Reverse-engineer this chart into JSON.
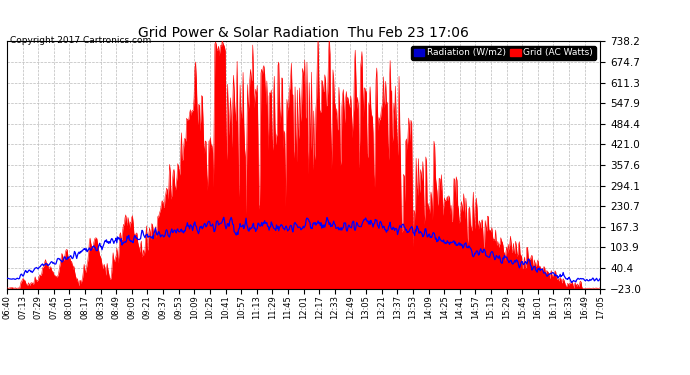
{
  "title": "Grid Power & Solar Radiation  Thu Feb 23 17:06",
  "copyright": "Copyright 2017 Cartronics.com",
  "yticks": [
    -23.0,
    40.4,
    103.9,
    167.3,
    230.7,
    294.1,
    357.6,
    421.0,
    484.4,
    547.9,
    611.3,
    674.7,
    738.2
  ],
  "ymin": -23.0,
  "ymax": 738.2,
  "bg_color": "#ffffff",
  "plot_bg_color": "#ffffff",
  "grid_color": "#bbbbbb",
  "fill_color": "#ff0000",
  "line_color": "#0000ff",
  "xtick_labels": [
    "06:40",
    "07:13",
    "07:29",
    "07:45",
    "08:01",
    "08:17",
    "08:33",
    "08:49",
    "09:05",
    "09:21",
    "09:37",
    "09:53",
    "10:09",
    "10:25",
    "10:41",
    "10:57",
    "11:13",
    "11:29",
    "11:45",
    "12:01",
    "12:17",
    "12:33",
    "12:49",
    "13:05",
    "13:21",
    "13:37",
    "13:53",
    "14:09",
    "14:25",
    "14:41",
    "14:57",
    "15:13",
    "15:29",
    "15:45",
    "16:01",
    "16:17",
    "16:33",
    "16:49",
    "17:05"
  ]
}
